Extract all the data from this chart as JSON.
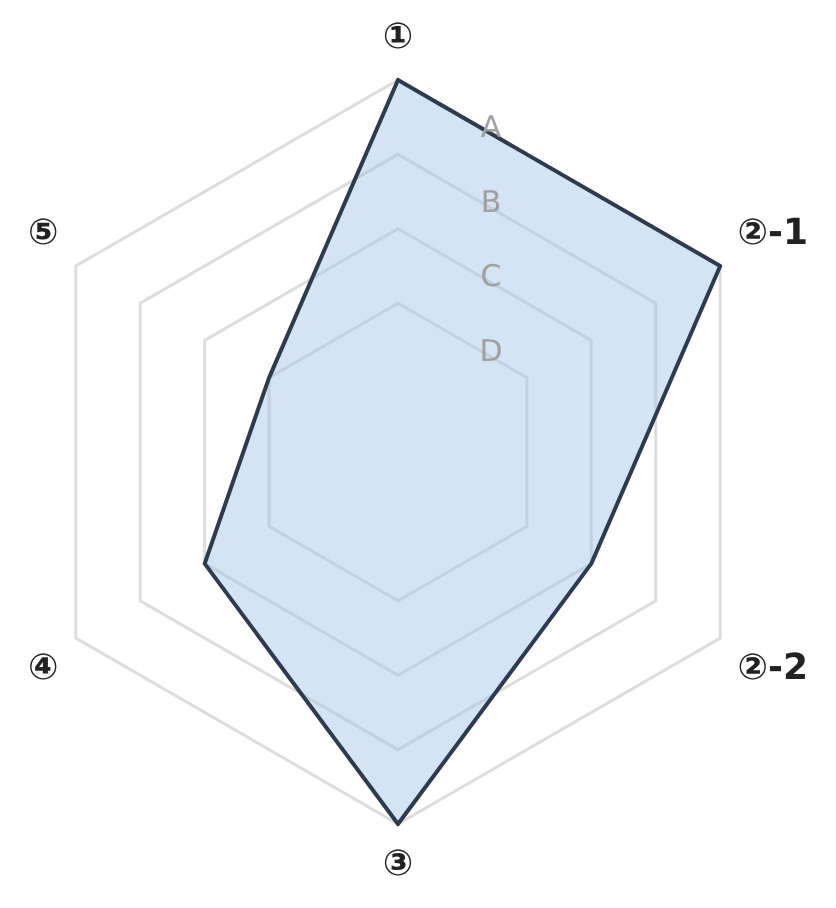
{
  "chart_data": {
    "type": "radar",
    "categories": [
      "①",
      "②-1",
      "②-2",
      "③",
      "④",
      "⑤"
    ],
    "series": [
      {
        "color": "#2e3b4e",
        "values": [
          5,
          5,
          3,
          5,
          3,
          2
        ]
      }
    ],
    "ylim": [
      0,
      5
    ],
    "yticks": [
      {
        "value": 2,
        "label": "D"
      },
      {
        "value": 3,
        "label": "C"
      },
      {
        "value": 4,
        "label": "B"
      },
      {
        "value": 5,
        "label": "A"
      }
    ],
    "grid": true,
    "legend": false,
    "marker": "none"
  }
}
